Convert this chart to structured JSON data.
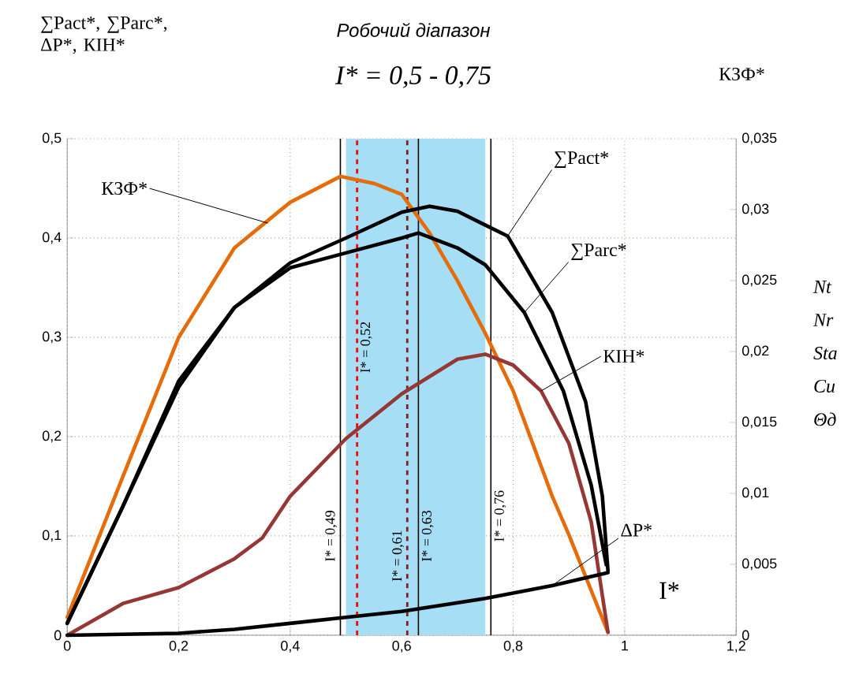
{
  "chart_data": {
    "type": "line",
    "title": "Робочий діапазон",
    "subtitle": "I* = 0,5 - 0,75",
    "xlabel": "I*",
    "ylabel": "∑Pact*, ∑Parc*, ΔP*, КІН*",
    "y2label": "КЗФ*",
    "xlim": [
      0,
      1.2
    ],
    "ylim": [
      0,
      0.5
    ],
    "y2lim": [
      0,
      0.035
    ],
    "xticks": [
      {
        "value": 0,
        "label": "0"
      },
      {
        "value": 0.2,
        "label": "0,2"
      },
      {
        "value": 0.4,
        "label": "0,4"
      },
      {
        "value": 0.6,
        "label": "0,6"
      },
      {
        "value": 0.8,
        "label": "0,8"
      },
      {
        "value": 1,
        "label": "1"
      },
      {
        "value": 1.2,
        "label": "1,2"
      }
    ],
    "yticks": [
      {
        "value": 0,
        "label": "0"
      },
      {
        "value": 0.1,
        "label": "0,1"
      },
      {
        "value": 0.2,
        "label": "0,2"
      },
      {
        "value": 0.3,
        "label": "0,3"
      },
      {
        "value": 0.4,
        "label": "0,4"
      },
      {
        "value": 0.5,
        "label": "0,5"
      }
    ],
    "y2ticks": [
      {
        "value": 0,
        "label": "0"
      },
      {
        "value": 0.005,
        "label": "0,005"
      },
      {
        "value": 0.01,
        "label": "0,01"
      },
      {
        "value": 0.015,
        "label": "0,015"
      },
      {
        "value": 0.02,
        "label": "0,02"
      },
      {
        "value": 0.025,
        "label": "0,025"
      },
      {
        "value": 0.03,
        "label": "0,03"
      },
      {
        "value": 0.035,
        "label": "0,035"
      }
    ],
    "grid": true,
    "line_style": "solid",
    "marker": "none",
    "series": [
      {
        "color": "#e46c0a",
        "x": [
          0,
          0.1,
          0.2,
          0.3,
          0.4,
          0.49,
          0.55,
          0.6,
          0.65,
          0.7,
          0.75,
          0.8,
          0.87,
          0.9,
          0.97
        ],
        "values": [
          0.018,
          0.16,
          0.3,
          0.39,
          0.436,
          0.462,
          0.455,
          0.444,
          0.405,
          0.357,
          0.304,
          0.246,
          0.14,
          0.101,
          0.003
        ]
      },
      {
        "color": "#000000",
        "x": [
          0,
          0.1,
          0.2,
          0.3,
          0.4,
          0.5,
          0.6,
          0.65,
          0.7,
          0.75,
          0.79,
          0.87,
          0.93,
          0.96,
          0.97
        ],
        "values": [
          0.012,
          0.13,
          0.256,
          0.33,
          0.375,
          0.4,
          0.426,
          0.432,
          0.427,
          0.413,
          0.402,
          0.325,
          0.235,
          0.14,
          0.065
        ]
      },
      {
        "color": "#000000",
        "x": [
          0,
          0.1,
          0.2,
          0.3,
          0.4,
          0.5,
          0.6,
          0.63,
          0.7,
          0.75,
          0.82,
          0.89,
          0.94,
          0.967
        ],
        "values": [
          0.012,
          0.13,
          0.25,
          0.33,
          0.37,
          0.385,
          0.4,
          0.405,
          0.39,
          0.373,
          0.325,
          0.246,
          0.151,
          0.071
        ]
      },
      {
        "color": "#953735",
        "x": [
          0,
          0.1,
          0.2,
          0.3,
          0.35,
          0.4,
          0.5,
          0.6,
          0.7,
          0.75,
          0.8,
          0.85,
          0.9,
          0.94,
          0.97
        ],
        "values": [
          0,
          0.032,
          0.048,
          0.077,
          0.098,
          0.14,
          0.198,
          0.243,
          0.278,
          0.283,
          0.272,
          0.246,
          0.193,
          0.114,
          0.003
        ]
      },
      {
        "color": "#000000",
        "x": [
          0,
          0.2,
          0.3,
          0.4,
          0.5,
          0.6,
          0.75,
          0.87,
          0.97
        ],
        "values": [
          0,
          0.002,
          0.006,
          0.012,
          0.018,
          0.024,
          0.037,
          0.05,
          0.063
        ]
      }
    ],
    "bands": [
      {
        "axis": "x",
        "from": 0.5,
        "to": 0.75,
        "color": "#a5def5"
      }
    ],
    "ref_lines": [
      {
        "axis": "x",
        "value": 0.49,
        "label": "I* = 0,49",
        "color": "#000000",
        "line_style": "solid"
      },
      {
        "axis": "x",
        "value": 0.52,
        "label": "I* = 0,52",
        "color": "#ff0000",
        "line_style": "dashed"
      },
      {
        "axis": "x",
        "value": 0.61,
        "label": "I* = 0,61",
        "color": "#7f1f1f",
        "line_style": "dashed"
      },
      {
        "axis": "x",
        "value": 0.63,
        "label": "I* = 0,63",
        "color": "#000000",
        "line_style": "solid"
      },
      {
        "axis": "x",
        "value": 0.76,
        "label": "I* = 0,76",
        "color": "#000000",
        "line_style": "solid"
      }
    ],
    "annotations": [
      {
        "text": "КЗФ*",
        "x": 0.36,
        "y": 0.415
      },
      {
        "text": "∑Pact*",
        "x": 0.79,
        "y": 0.402
      },
      {
        "text": "∑Parc*",
        "x": 0.82,
        "y": 0.325
      },
      {
        "text": "КІН*",
        "x": 0.85,
        "y": 0.246
      },
      {
        "text": "ΔP*",
        "x": 0.87,
        "y": 0.05
      },
      "Nt",
      "Nr",
      "Sta",
      "Cu",
      "Θд"
    ]
  }
}
